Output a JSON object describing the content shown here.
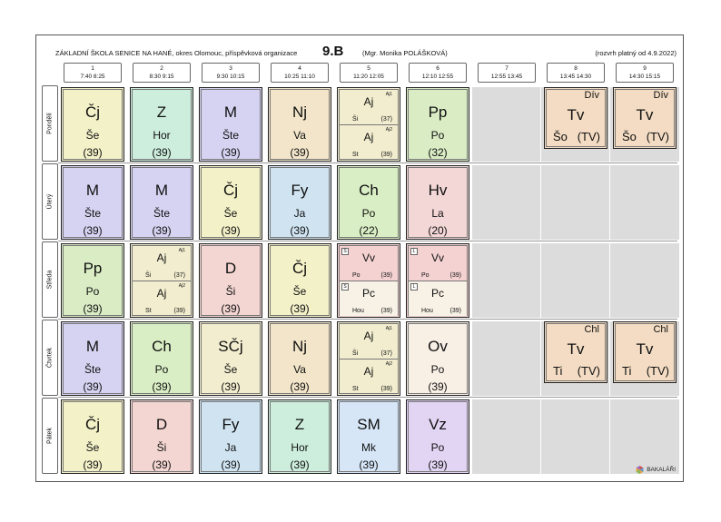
{
  "header": {
    "school": "ZÁKLADNÍ ŠKOLA SENICE NA HANÉ, okres Olomouc, příspěvková organizace",
    "class_name": "9.B",
    "class_teacher": "(Mgr. Monika POLÁŠKOVÁ)",
    "validity": "(rozvrh platný od 4.9.2022)"
  },
  "periods": [
    {
      "num": "1",
      "time": "7:40  8:25"
    },
    {
      "num": "2",
      "time": "8:30  9:15"
    },
    {
      "num": "3",
      "time": "9:30 10:15"
    },
    {
      "num": "4",
      "time": "10:25 11:10"
    },
    {
      "num": "5",
      "time": "11:20 12:05"
    },
    {
      "num": "6",
      "time": "12:10 12:55"
    },
    {
      "num": "7",
      "time": "12:55 13:45"
    },
    {
      "num": "8",
      "time": "13:45 14:30"
    },
    {
      "num": "9",
      "time": "14:30 15:15"
    }
  ],
  "days": [
    "Pondělí",
    "Úterý",
    "Středa",
    "Čtvrtek",
    "Pátek"
  ],
  "colors": {
    "Cj": "#f3f1c8",
    "Z": "#cdeedd",
    "M": "#d6d2f1",
    "Nj": "#f2e5c9",
    "Aj": "#f2edcf",
    "Pp": "#d9ecc4",
    "Tv": "#f3dcc3",
    "Fy": "#cfe3f1",
    "Ch": "#d9eec4",
    "Hv": "#f3d6d6",
    "D": "#f3d6d2",
    "Vv": "#f5d2d2",
    "Pc": "#f8f2e6",
    "SCj": "#f2edcf",
    "Ov": "#f8efe5",
    "SM": "#d6e6f7",
    "Vz": "#e2d4f3",
    "empty": "#dcdcdc"
  },
  "schedule": {
    "mon": {
      "p1": {
        "subject": "Čj",
        "teacher": "Še",
        "room": "(39)"
      },
      "p2": {
        "subject": "Z",
        "teacher": "Hor",
        "room": "(39)"
      },
      "p3": {
        "subject": "M",
        "teacher": "Šte",
        "room": "(39)"
      },
      "p4": {
        "subject": "Nj",
        "teacher": "Va",
        "room": "(39)"
      },
      "p5a": {
        "group": "Aj1",
        "subject": "Aj",
        "teacher": "Ši",
        "room": "(37)"
      },
      "p5b": {
        "group": "Aj2",
        "subject": "Aj",
        "teacher": "St",
        "room": "(39)"
      },
      "p6": {
        "subject": "Pp",
        "teacher": "Po",
        "room": "(32)"
      },
      "p8": {
        "group": "Dív",
        "subject": "Tv",
        "teacher": "Šo",
        "room": "(TV)"
      },
      "p9": {
        "group": "Dív",
        "subject": "Tv",
        "teacher": "Šo",
        "room": "(TV)"
      }
    },
    "tue": {
      "p1": {
        "subject": "M",
        "teacher": "Šte",
        "room": "(39)"
      },
      "p2": {
        "subject": "M",
        "teacher": "Šte",
        "room": "(39)"
      },
      "p3": {
        "subject": "Čj",
        "teacher": "Še",
        "room": "(39)"
      },
      "p4": {
        "subject": "Fy",
        "teacher": "Ja",
        "room": "(39)"
      },
      "p5": {
        "subject": "Ch",
        "teacher": "Po",
        "room": "(22)"
      },
      "p6": {
        "subject": "Hv",
        "teacher": "La",
        "room": "(20)"
      }
    },
    "wed": {
      "p1": {
        "subject": "Pp",
        "teacher": "Po",
        "room": "(39)"
      },
      "p2a": {
        "group": "Aj1",
        "subject": "Aj",
        "teacher": "Ši",
        "room": "(37)"
      },
      "p2b": {
        "group": "Aj2",
        "subject": "Aj",
        "teacher": "St",
        "room": "(39)"
      },
      "p3": {
        "subject": "D",
        "teacher": "Ši",
        "room": "(39)"
      },
      "p4": {
        "subject": "Čj",
        "teacher": "Še",
        "room": "(39)"
      },
      "p5a": {
        "mark": "S",
        "subject": "Vv",
        "teacher": "Po",
        "room": "(39)"
      },
      "p5b": {
        "mark": "S",
        "subject": "Pc",
        "teacher": "Hou",
        "room": "(39)"
      },
      "p6a": {
        "mark": "L",
        "subject": "Vv",
        "teacher": "Po",
        "room": "(39)"
      },
      "p6b": {
        "mark": "L",
        "subject": "Pc",
        "teacher": "Hou",
        "room": "(39)"
      }
    },
    "thu": {
      "p1": {
        "subject": "M",
        "teacher": "Šte",
        "room": "(39)"
      },
      "p2": {
        "subject": "Ch",
        "teacher": "Po",
        "room": "(39)"
      },
      "p3": {
        "subject": "SČj",
        "teacher": "Še",
        "room": "(39)"
      },
      "p4": {
        "subject": "Nj",
        "teacher": "Va",
        "room": "(39)"
      },
      "p5a": {
        "group": "Aj1",
        "subject": "Aj",
        "teacher": "Ši",
        "room": "(37)"
      },
      "p5b": {
        "group": "Aj2",
        "subject": "Aj",
        "teacher": "St",
        "room": "(39)"
      },
      "p6": {
        "subject": "Ov",
        "teacher": "Po",
        "room": "(39)"
      },
      "p8": {
        "group": "Chl",
        "subject": "Tv",
        "teacher": "Ti",
        "room": "(TV)"
      },
      "p9": {
        "group": "Chl",
        "subject": "Tv",
        "teacher": "Ti",
        "room": "(TV)"
      }
    },
    "fri": {
      "p1": {
        "subject": "Čj",
        "teacher": "Še",
        "room": "(39)"
      },
      "p2": {
        "subject": "D",
        "teacher": "Ši",
        "room": "(39)"
      },
      "p3": {
        "subject": "Fy",
        "teacher": "Ja",
        "room": "(39)"
      },
      "p4": {
        "subject": "Z",
        "teacher": "Hor",
        "room": "(39)"
      },
      "p5": {
        "subject": "SM",
        "teacher": "Mk",
        "room": "(39)"
      },
      "p6": {
        "subject": "Vz",
        "teacher": "Po",
        "room": "(39)"
      }
    }
  },
  "logo": {
    "text": "BAKALÁŘI",
    "icon": "bakalari-logo-icon"
  }
}
